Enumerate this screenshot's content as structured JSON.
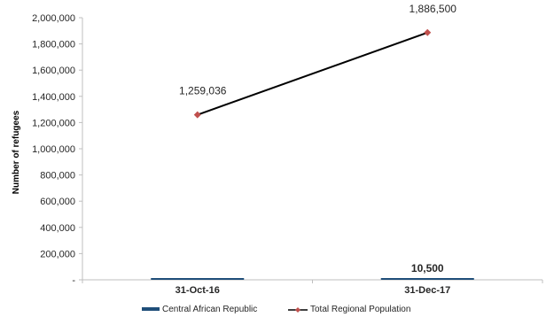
{
  "chart_data": {
    "type": "bar",
    "categories": [
      "31-Oct-16",
      "31-Dec-17"
    ],
    "ylabel": "Number of refugees",
    "ylim": [
      0,
      2000000
    ],
    "yticks": [
      0,
      200000,
      400000,
      600000,
      800000,
      1000000,
      1200000,
      1400000,
      1600000,
      1800000,
      2000000
    ],
    "ytick_labels": [
      "-",
      "200,000",
      "400,000",
      "600,000",
      "800,000",
      "1,000,000",
      "1,200,000",
      "1,400,000",
      "1,600,000",
      "1,800,000",
      "2,000,000"
    ],
    "grid": false,
    "legend_position": "bottom",
    "series": [
      {
        "name": "Central African Republic",
        "type": "bar",
        "color": "#1f4e79",
        "values": [
          1000,
          10500
        ],
        "data_labels": [
          "",
          "10,500"
        ]
      },
      {
        "name": "Total Regional Population",
        "type": "line",
        "color": "#000000",
        "marker_color": "#c0504d",
        "values": [
          1259036,
          1886500
        ],
        "data_labels": [
          "1,259,036",
          "1,886,500"
        ]
      }
    ]
  }
}
